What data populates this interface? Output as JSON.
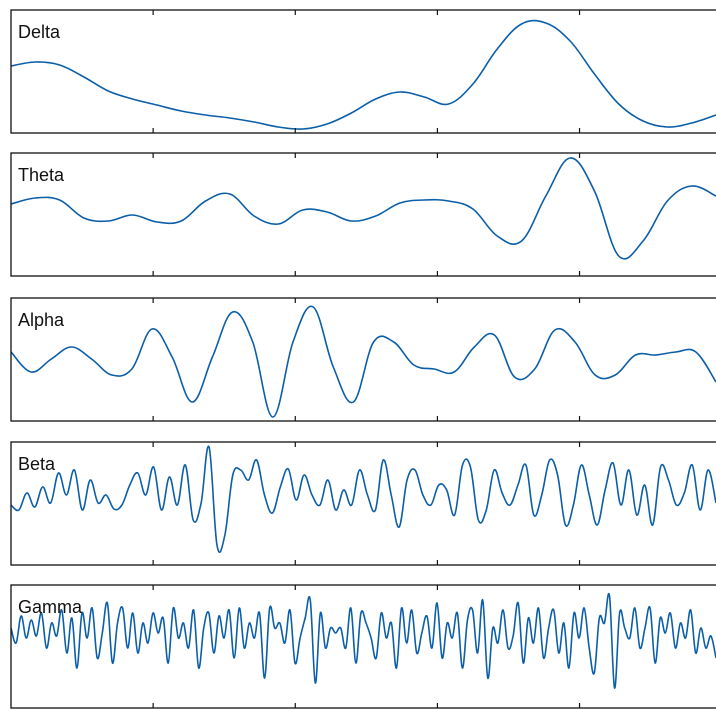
{
  "chart_data": [
    {
      "type": "line",
      "title": "Delta",
      "color": "#0b5ea8",
      "xlim": [
        0,
        4.96
      ],
      "xticks": [
        1,
        2,
        3,
        4
      ],
      "ylim": [
        0,
        123
      ],
      "values": [
        67,
        71,
        68,
        56,
        42,
        34,
        28,
        22,
        18,
        15,
        11,
        6,
        4,
        9,
        20,
        34,
        41,
        36,
        29,
        49,
        84,
        109,
        110,
        92,
        59,
        29,
        12,
        6,
        10,
        18
      ]
    },
    {
      "type": "line",
      "title": "Theta",
      "color": "#0b5ea8",
      "xlim": [
        0,
        4.96
      ],
      "xticks": [
        1,
        2,
        3,
        4
      ],
      "ylim": [
        0,
        123
      ],
      "values": [
        72,
        78,
        76,
        58,
        55,
        61,
        54,
        55,
        75,
        82,
        60,
        52,
        66,
        64,
        55,
        60,
        73,
        76,
        75,
        67,
        40,
        35,
        80,
        118,
        85,
        20,
        35,
        75,
        90,
        80
      ]
    },
    {
      "type": "line",
      "title": "Alpha",
      "color": "#0b5ea8",
      "xlim": [
        0,
        4.96
      ],
      "xticks": [
        1,
        2,
        3,
        4
      ],
      "ylim": [
        0,
        123
      ],
      "values": [
        69,
        49,
        62,
        74,
        62,
        46,
        52,
        92,
        64,
        19,
        64,
        109,
        79,
        4,
        79,
        114,
        54,
        19,
        79,
        79,
        56,
        52,
        49,
        74,
        86,
        44,
        52,
        91,
        79,
        46,
        46,
        66,
        66,
        69,
        69,
        39
      ]
    },
    {
      "type": "line",
      "title": "Beta",
      "color": "#0b5ea8",
      "xlim": [
        0,
        4.96
      ],
      "xticks": [
        1,
        2,
        3,
        4
      ],
      "ylim": [
        0,
        123
      ],
      "values": [
        60,
        55,
        72,
        58,
        78,
        62,
        92,
        70,
        95,
        55,
        85,
        62,
        70,
        56,
        60,
        80,
        92,
        70,
        98,
        55,
        88,
        60,
        100,
        45,
        62,
        118,
        20,
        30,
        90,
        95,
        85,
        105,
        70,
        52,
        78,
        96,
        65,
        90,
        70,
        60,
        85,
        55,
        75,
        60,
        95,
        70,
        55,
        105,
        70,
        38,
        85,
        95,
        70,
        60,
        80,
        75,
        50,
        100,
        98,
        45,
        55,
        95,
        72,
        60,
        80,
        100,
        50,
        70,
        105,
        90,
        40,
        60,
        100,
        70,
        40,
        75,
        102,
        60,
        95,
        50,
        80,
        40,
        98,
        85,
        60,
        72,
        100,
        55,
        95,
        62
      ]
    },
    {
      "type": "line",
      "title": "Gamma",
      "color": "#0b5ea8",
      "xlim": [
        0,
        4.96
      ],
      "xticks": [
        1,
        2,
        3,
        4
      ],
      "ylim": [
        0,
        123
      ],
      "values": [
        80,
        65,
        92,
        70,
        88,
        72,
        95,
        60,
        85,
        72,
        98,
        55,
        90,
        40,
        95,
        70,
        100,
        50,
        75,
        105,
        45,
        85,
        100,
        60,
        95,
        55,
        85,
        65,
        95,
        75,
        90,
        45,
        100,
        70,
        85,
        60,
        98,
        40,
        80,
        95,
        55,
        92,
        70,
        98,
        50,
        100,
        60,
        85,
        70,
        95,
        30,
        100,
        80,
        85,
        65,
        98,
        45,
        70,
        90,
        108,
        25,
        95,
        60,
        80,
        75,
        80,
        60,
        100,
        45,
        95,
        85,
        70,
        50,
        95,
        70,
        85,
        40,
        100,
        65,
        98,
        55,
        75,
        92,
        60,
        105,
        50,
        85,
        70,
        95,
        40,
        88,
        98,
        55,
        108,
        30,
        80,
        65,
        98,
        60,
        72,
        105,
        45,
        90,
        65,
        100,
        50,
        80,
        98,
        55,
        85,
        40,
        95,
        70,
        100,
        60,
        35,
        90,
        85,
        112,
        20,
        95,
        80,
        70,
        100,
        60,
        80,
        100,
        45,
        90,
        75,
        95,
        60,
        85,
        70,
        98,
        55,
        80,
        60,
        72,
        50
      ]
    }
  ]
}
